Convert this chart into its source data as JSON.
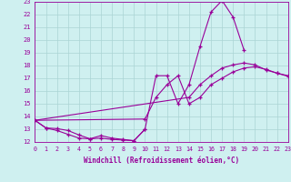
{
  "xlabel": "Windchill (Refroidissement éolien,°C)",
  "xlim": [
    0,
    23
  ],
  "ylim": [
    12,
    23
  ],
  "yticks": [
    12,
    13,
    14,
    15,
    16,
    17,
    18,
    19,
    20,
    21,
    22,
    23
  ],
  "xticks": [
    0,
    1,
    2,
    3,
    4,
    5,
    6,
    7,
    8,
    9,
    10,
    11,
    12,
    13,
    14,
    15,
    16,
    17,
    18,
    19,
    20,
    21,
    22,
    23
  ],
  "bg_color": "#cff0f0",
  "grid_color": "#aad4d4",
  "line_color": "#990099",
  "spike_x": [
    0,
    1,
    2,
    3,
    4,
    5,
    6,
    7,
    8,
    9,
    10,
    11,
    12,
    13,
    14,
    15,
    16,
    17,
    18,
    19
  ],
  "spike_y": [
    13.7,
    13.1,
    13.05,
    12.9,
    12.55,
    12.25,
    12.5,
    12.3,
    12.2,
    12.1,
    13.0,
    17.2,
    17.2,
    15.0,
    16.5,
    19.5,
    22.2,
    23.1,
    21.8,
    19.2
  ],
  "low_x": [
    0,
    1,
    2,
    3,
    4,
    5,
    6,
    7,
    8,
    9,
    10
  ],
  "low_y": [
    13.7,
    13.1,
    12.9,
    12.6,
    12.3,
    12.25,
    12.3,
    12.2,
    12.15,
    12.1,
    13.0
  ],
  "upper_diag_x": [
    0,
    14,
    15,
    16,
    17,
    18,
    19,
    20,
    21,
    22,
    23
  ],
  "upper_diag_y": [
    13.7,
    15.5,
    16.5,
    17.2,
    17.8,
    18.05,
    18.2,
    18.05,
    17.65,
    17.4,
    17.2
  ],
  "lower_diag_x": [
    0,
    10,
    11,
    12,
    13,
    14,
    15,
    16,
    17,
    18,
    19,
    20,
    21,
    22,
    23
  ],
  "lower_diag_y": [
    13.7,
    13.8,
    15.5,
    16.5,
    17.2,
    15.0,
    15.5,
    16.5,
    17.0,
    17.5,
    17.8,
    17.9,
    17.7,
    17.4,
    17.15
  ]
}
